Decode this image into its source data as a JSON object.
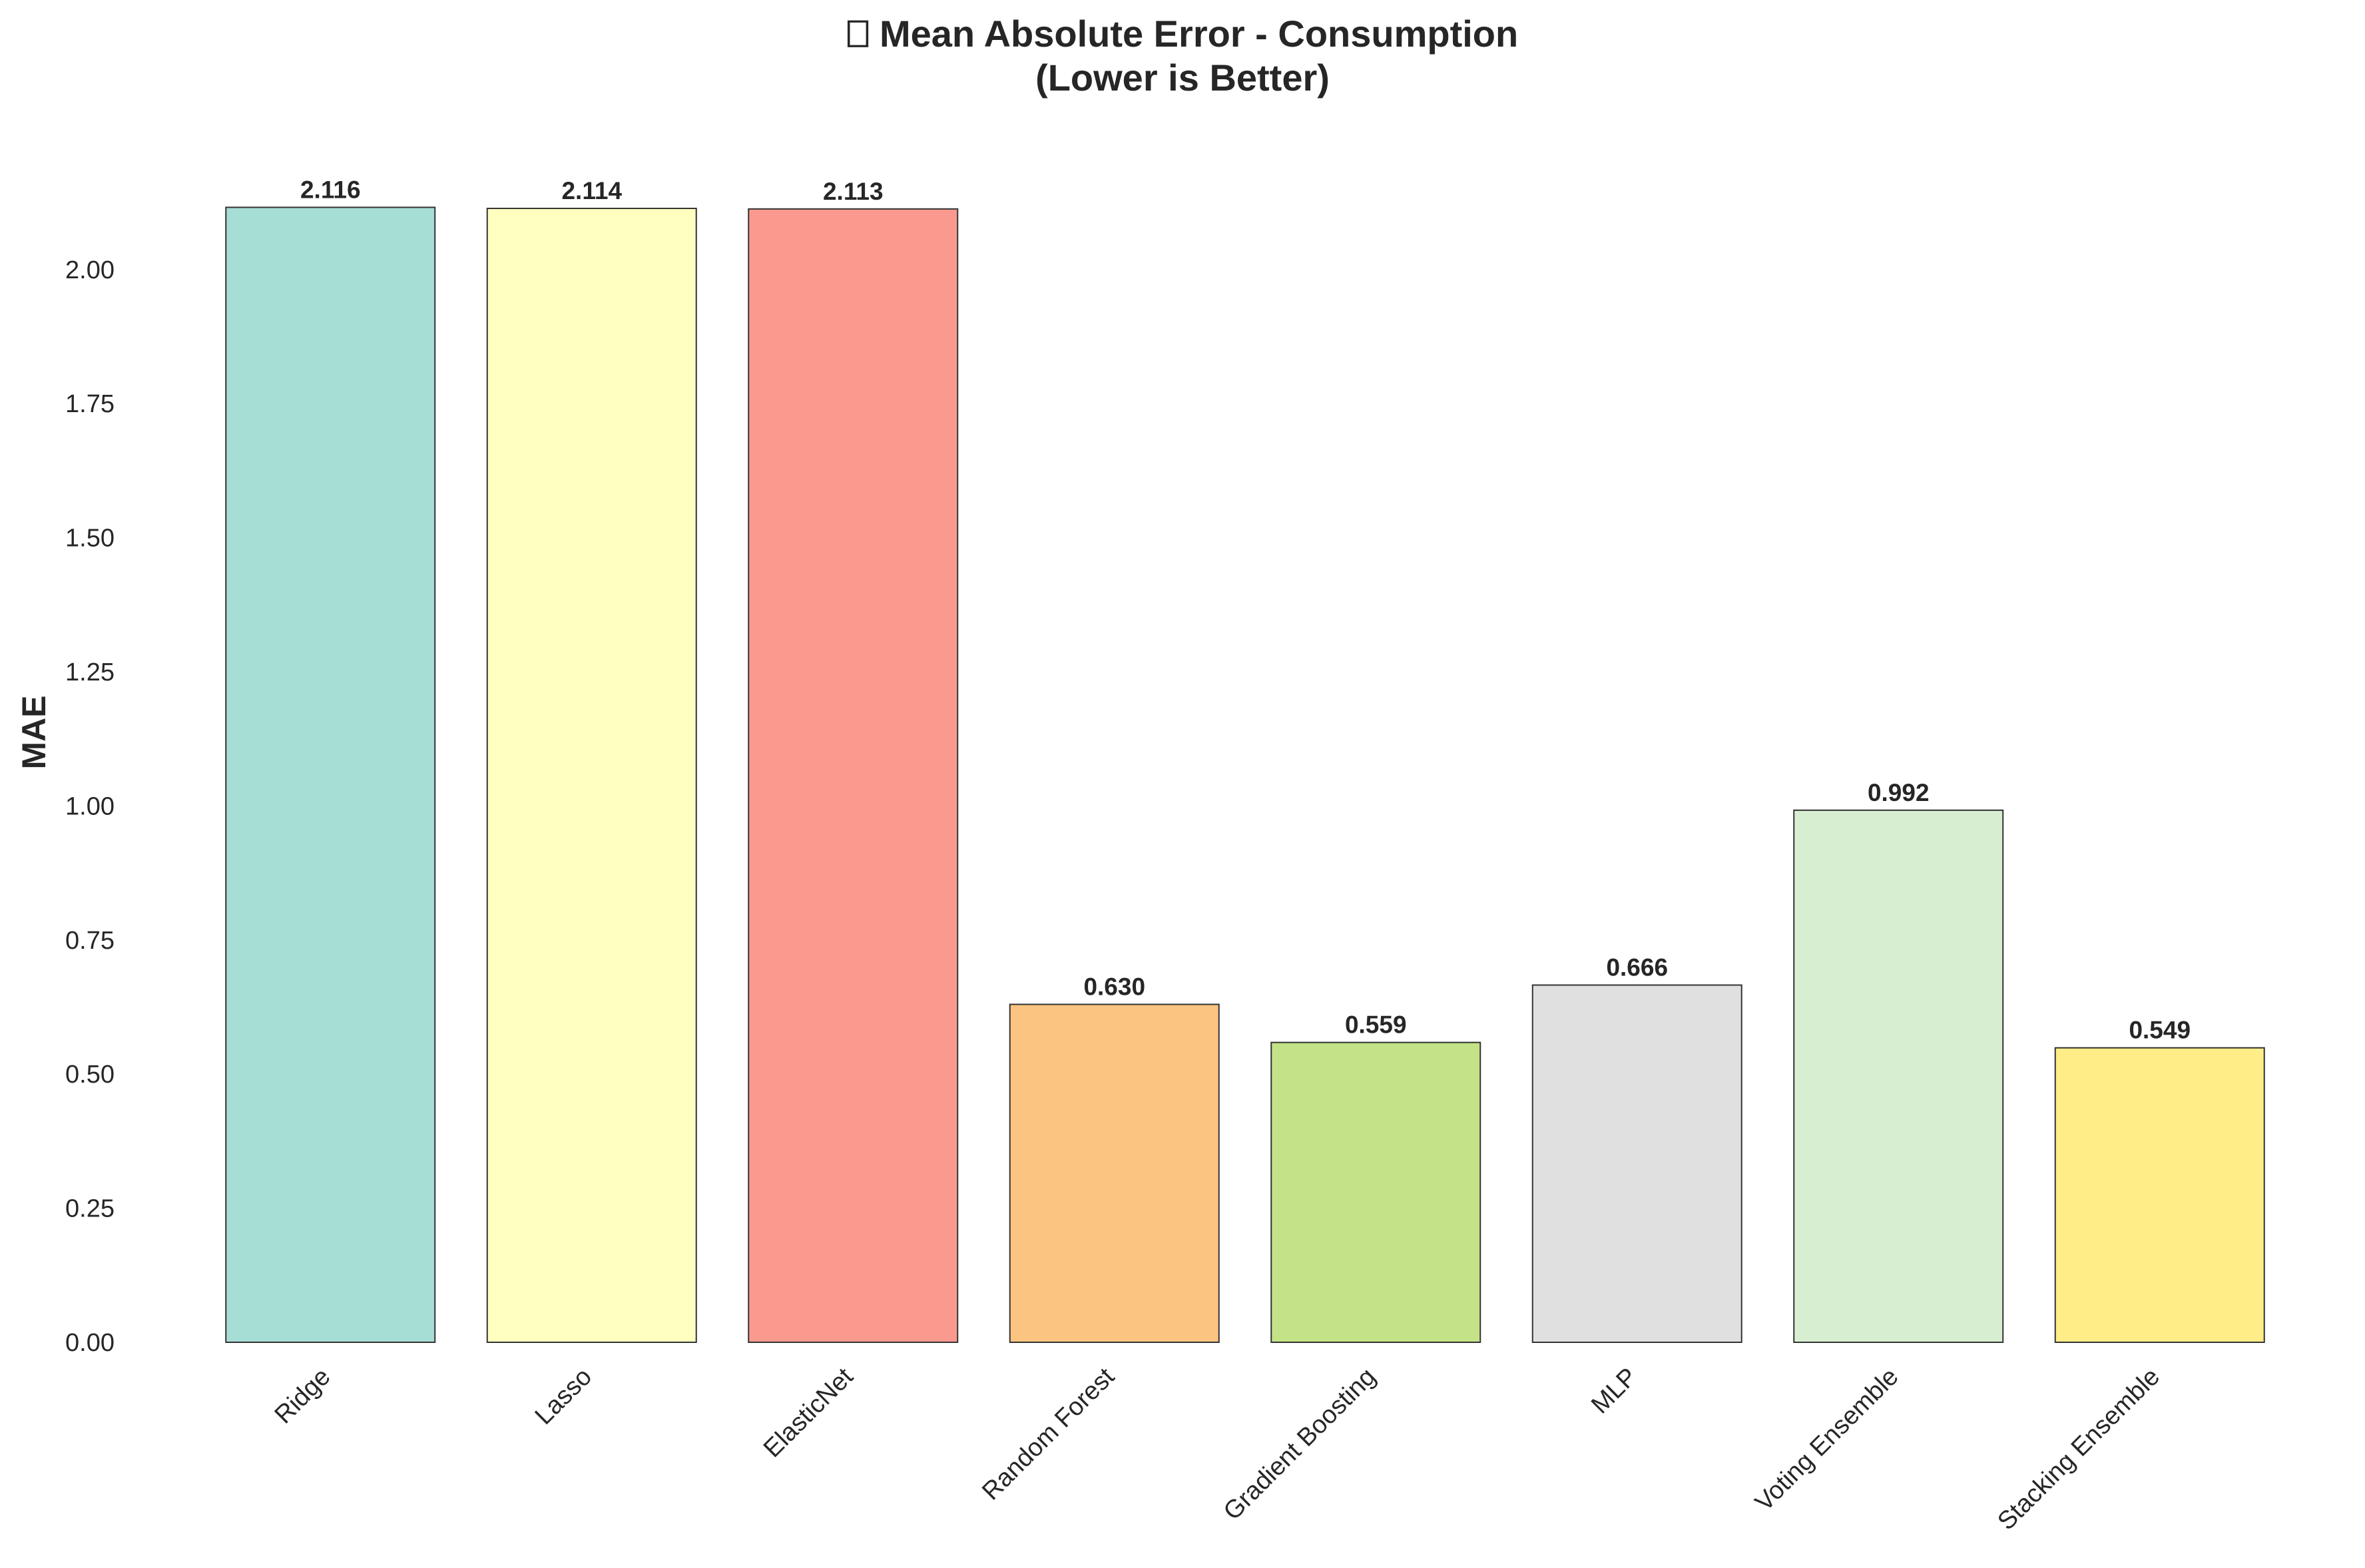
{
  "chart_data": {
    "type": "bar",
    "title_line1": "⎕ Mean Absolute Error - Consumption",
    "title_line2": "(Lower is Better)",
    "xlabel": "",
    "ylabel": "MAE",
    "ylim": [
      0,
      2.222
    ],
    "yticks": [
      "0.00",
      "0.25",
      "0.50",
      "0.75",
      "1.00",
      "1.25",
      "1.50",
      "1.75",
      "2.00"
    ],
    "ytick_values": [
      0,
      0.25,
      0.5,
      0.75,
      1.0,
      1.25,
      1.5,
      1.75,
      2.0
    ],
    "grid": false,
    "categories": [
      "Ridge",
      "Lasso",
      "ElasticNet",
      "Random Forest",
      "Gradient Boosting",
      "MLP",
      "Voting Ensemble",
      "Stacking Ensemble"
    ],
    "values": [
      2.116,
      2.114,
      2.113,
      0.63,
      0.559,
      0.666,
      0.992,
      0.549
    ],
    "value_labels": [
      "2.116",
      "2.114",
      "2.113",
      "0.630",
      "0.559",
      "0.666",
      "0.992",
      "0.549"
    ],
    "colors": [
      "#a6ddd5",
      "#ffffc0",
      "#fa9a8f",
      "#fcc481",
      "#c3e386",
      "#e0e0e0",
      "#d7efd0",
      "#ffed88"
    ],
    "edge_color": "#333333"
  }
}
